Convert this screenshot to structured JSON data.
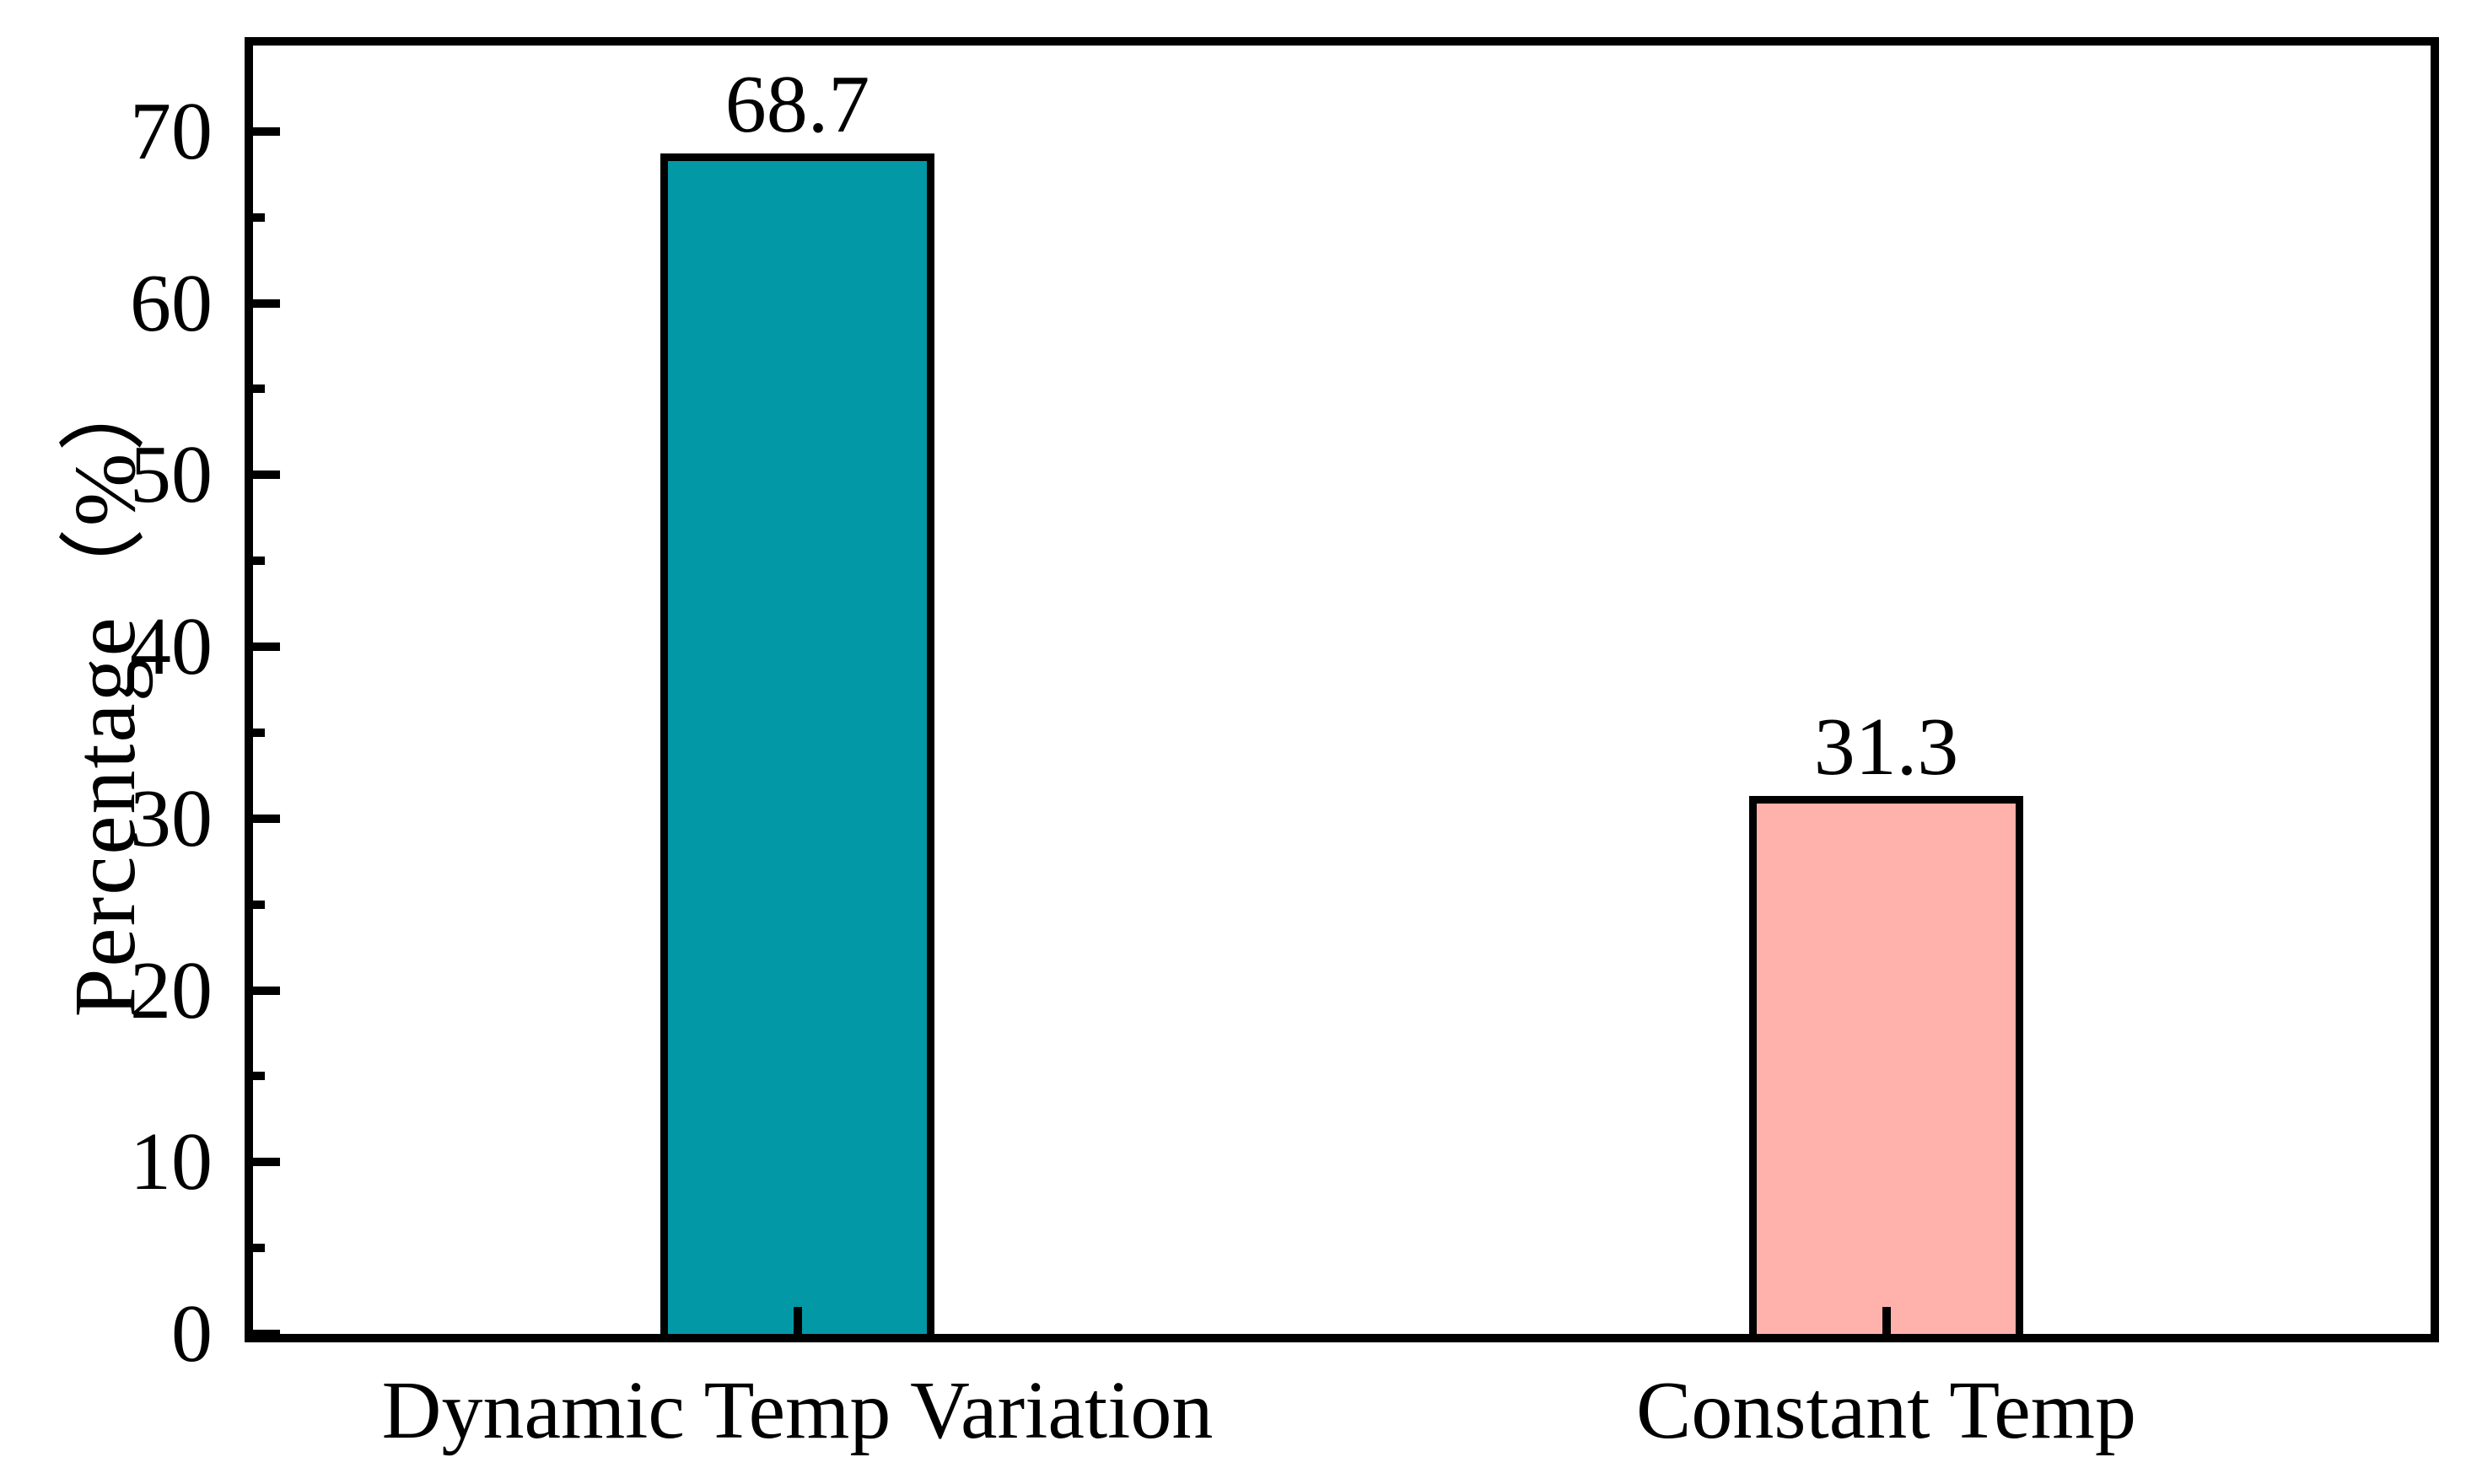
{
  "figure": {
    "background_color": "#ffffff",
    "axis_color": "#000000",
    "text_color": "#000000"
  },
  "chart_data": {
    "type": "bar",
    "title": "",
    "categories": [
      "Dynamic Temp Variation",
      "Constant Temp"
    ],
    "series": [
      {
        "name": "Percentage",
        "values": [
          68.7,
          31.3
        ]
      }
    ],
    "value_labels": [
      "68.7",
      "31.3"
    ],
    "bar_colors": [
      "#0398A6",
      "#FFB2AC"
    ],
    "bar_edge_color": "#000000",
    "xlabel": "",
    "ylabel": "Percentage（%）",
    "ylim": [
      0,
      75
    ],
    "yticks_major": [
      0,
      10,
      20,
      30,
      40,
      50,
      60,
      70
    ],
    "ytick_labels": [
      "0",
      "10",
      "20",
      "30",
      "40",
      "50",
      "60",
      "70"
    ],
    "yticks_minor": [
      5,
      15,
      25,
      35,
      45,
      55,
      65
    ],
    "grid": false,
    "legend_position": "none",
    "tick_direction": "in"
  }
}
